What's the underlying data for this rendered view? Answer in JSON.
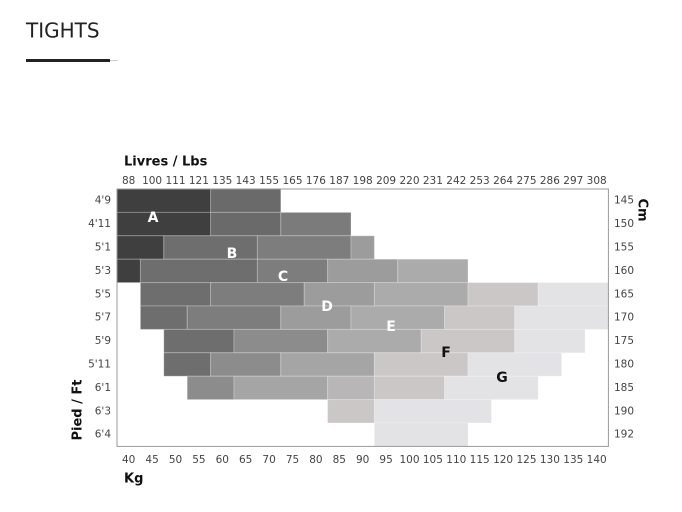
{
  "header": {
    "title": "TIGHTS"
  },
  "chart": {
    "top_axis_title": "Livres / Lbs",
    "top_labels": [
      "88",
      "100",
      "111",
      "121",
      "135",
      "143",
      "155",
      "165",
      "176",
      "187",
      "198",
      "209",
      "220",
      "231",
      "242",
      "253",
      "264",
      "275",
      "286",
      "297",
      "308"
    ],
    "bottom_axis_title": "Kg",
    "bottom_labels": [
      "40",
      "45",
      "50",
      "55",
      "60",
      "65",
      "70",
      "75",
      "80",
      "85",
      "90",
      "95",
      "100",
      "105",
      "110",
      "115",
      "120",
      "125",
      "130",
      "135",
      "140"
    ],
    "left_axis_title": "Pied / Ft",
    "left_labels": [
      "4'9",
      "4'11",
      "5'1",
      "5'3",
      "5'5",
      "5'7",
      "5'9",
      "5'11",
      "6'1",
      "6'3",
      "6'4"
    ],
    "right_axis_title": "Cm",
    "right_labels": [
      "145",
      "150",
      "155",
      "160",
      "165",
      "170",
      "175",
      "180",
      "185",
      "190",
      "192"
    ],
    "zones": [
      "A",
      "B",
      "C",
      "D",
      "E",
      "F",
      "G"
    ]
  }
}
